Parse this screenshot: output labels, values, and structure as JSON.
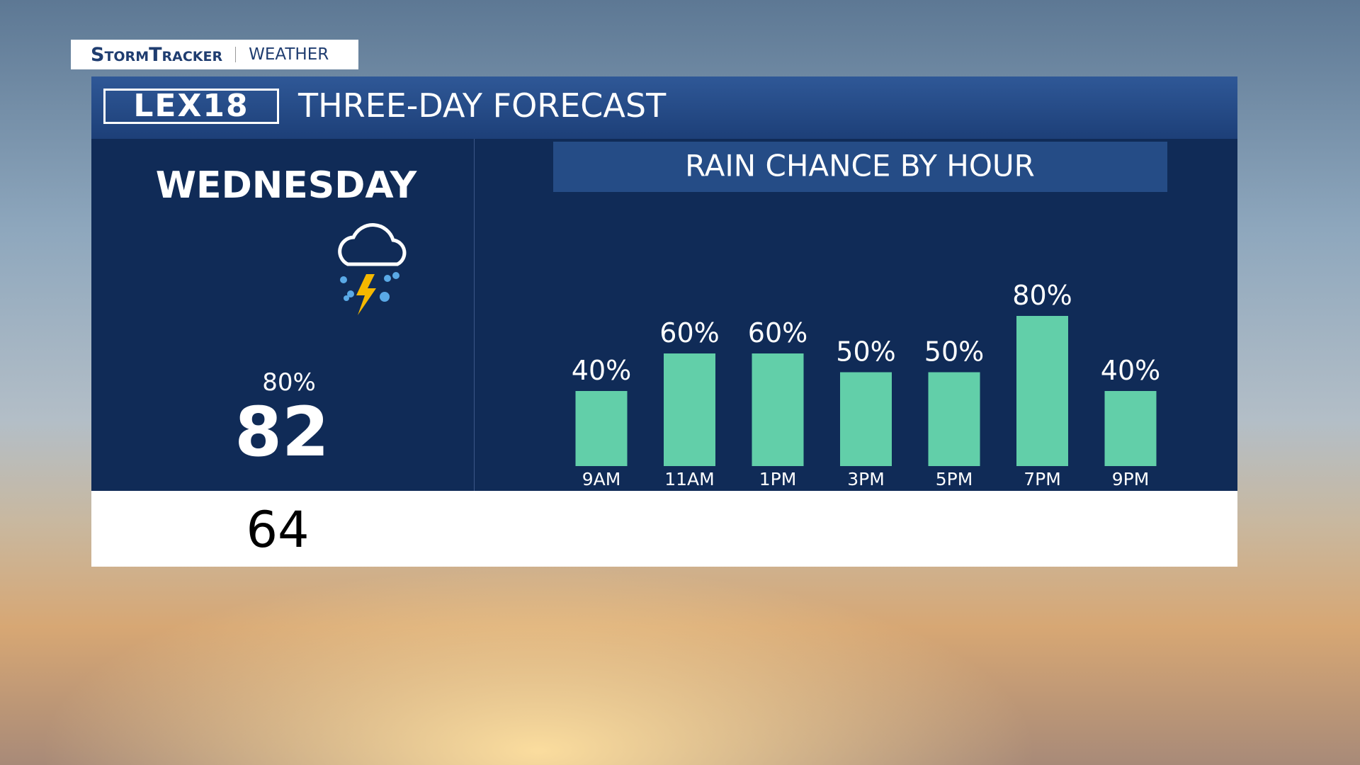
{
  "brand": {
    "name": "StormTracker",
    "section": "WEATHER"
  },
  "header": {
    "logo": "LEX18",
    "title": "THREE-DAY FORECAST"
  },
  "day": {
    "name": "WEDNESDAY",
    "precip": "80%",
    "high": "82",
    "low": "64"
  },
  "chart_data": {
    "type": "bar",
    "title": "RAIN CHANCE BY HOUR",
    "categories": [
      "9AM",
      "11AM",
      "1PM",
      "3PM",
      "5PM",
      "7PM",
      "9PM"
    ],
    "values": [
      40,
      60,
      60,
      50,
      50,
      80,
      40
    ],
    "value_labels": [
      "40%",
      "60%",
      "60%",
      "50%",
      "50%",
      "80%",
      "40%"
    ],
    "color": "#62cfa9"
  }
}
